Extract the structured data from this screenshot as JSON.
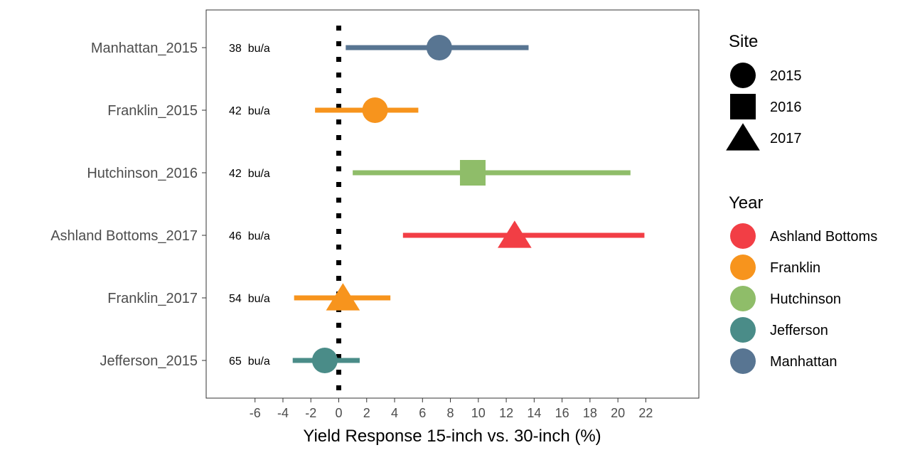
{
  "chart_data": {
    "type": "scatter",
    "title": "",
    "xlabel": "Yield Response 15-inch vs. 30-inch (%)",
    "ylabel": "",
    "xticks": [
      -6,
      -4,
      -2,
      0,
      2,
      4,
      6,
      8,
      10,
      12,
      14,
      16,
      18,
      20,
      22
    ],
    "xlim": [
      -9.5,
      25.8
    ],
    "reference_line": {
      "x": 0,
      "style": "dotted",
      "color": "#000000"
    },
    "grid": false,
    "categories": [
      "Manhattan_2015",
      "Franklin_2015",
      "Hutchinson_2016",
      "Ashland Bottoms_2017",
      "Franklin_2017",
      "Jefferson_2015"
    ],
    "points": [
      {
        "label": "Manhattan_2015",
        "site": "Manhattan",
        "year": "2015",
        "estimate": 7.2,
        "low": 0.5,
        "high": 13.6,
        "annotation": "38  bu/a"
      },
      {
        "label": "Franklin_2015",
        "site": "Franklin",
        "year": "2015",
        "estimate": 2.6,
        "low": -1.7,
        "high": 5.7,
        "annotation": "42  bu/a"
      },
      {
        "label": "Hutchinson_2016",
        "site": "Hutchinson",
        "year": "2016",
        "estimate": 9.6,
        "low": 1.0,
        "high": 20.9,
        "annotation": "42  bu/a"
      },
      {
        "label": "Ashland Bottoms_2017",
        "site": "Ashland Bottoms",
        "year": "2017",
        "estimate": 12.6,
        "low": 4.6,
        "high": 21.9,
        "annotation": "46  bu/a"
      },
      {
        "label": "Franklin_2017",
        "site": "Franklin",
        "year": "2017",
        "estimate": 0.3,
        "low": -3.2,
        "high": 3.7,
        "annotation": "54  bu/a"
      },
      {
        "label": "Jefferson_2015",
        "site": "Jefferson",
        "year": "2015",
        "estimate": -1.0,
        "low": -3.3,
        "high": 1.5,
        "annotation": "65  bu/a"
      }
    ],
    "shape_legend": {
      "title": "Site",
      "items": [
        {
          "label": "2015",
          "shape": "circle"
        },
        {
          "label": "2016",
          "shape": "square"
        },
        {
          "label": "2017",
          "shape": "triangle"
        }
      ]
    },
    "color_legend": {
      "title": "Year",
      "items": [
        {
          "label": "Ashland Bottoms",
          "color": "#f23e45"
        },
        {
          "label": "Franklin",
          "color": "#f7941d"
        },
        {
          "label": "Hutchinson",
          "color": "#8fbd69"
        },
        {
          "label": "Jefferson",
          "color": "#4a8c88"
        },
        {
          "label": "Manhattan",
          "color": "#587592"
        }
      ]
    },
    "legend_position": "right"
  }
}
